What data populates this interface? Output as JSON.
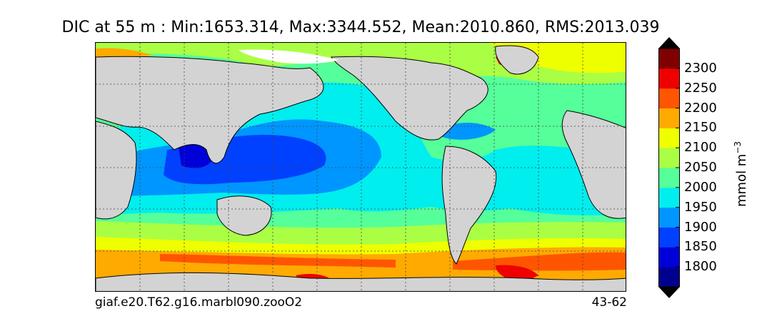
{
  "title": "DIC at 55 m : Min:1653.314, Max:3344.552, Mean:2010.860, RMS:2013.039",
  "footer": {
    "case_name": "giaf.e20.T62.g16.marbl090.zooO2",
    "years": "43-62"
  },
  "colorbar": {
    "unit_text": "mmol m",
    "unit_exp": "−3",
    "ticks": [
      "1800",
      "1850",
      "1900",
      "1950",
      "2000",
      "2050",
      "2100",
      "2150",
      "2200",
      "2250",
      "2300"
    ],
    "levels": [
      1750,
      1800,
      1850,
      1900,
      1950,
      2000,
      2050,
      2100,
      2150,
      2200,
      2250,
      2300,
      2350
    ],
    "colors": [
      "#00008f",
      "#0000d9",
      "#0040ff",
      "#0096ff",
      "#00eeee",
      "#55ff99",
      "#aaff44",
      "#eeff00",
      "#ffaa00",
      "#ff5500",
      "#ee0000",
      "#800000"
    ],
    "under_color": "#000000",
    "over_color": "#000000"
  },
  "map": {
    "projection": "cylindrical",
    "land_color": "#d3d3d3",
    "grid": "dotted"
  }
}
